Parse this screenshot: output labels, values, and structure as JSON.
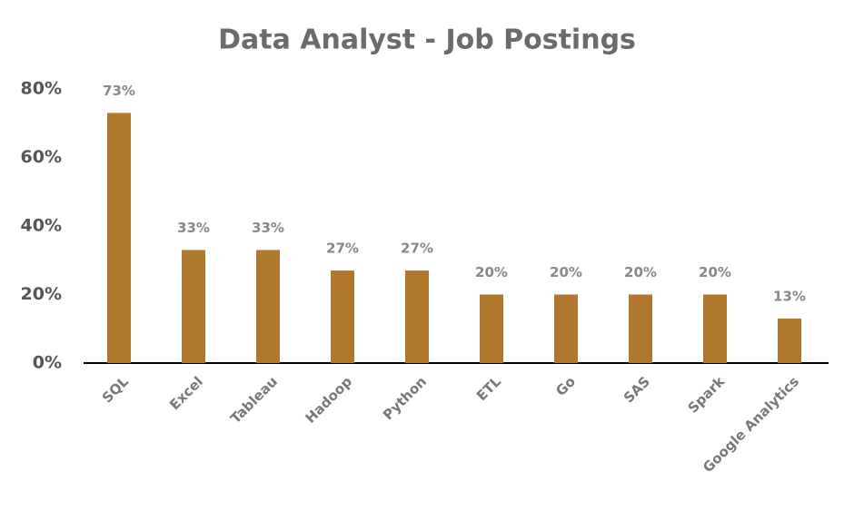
{
  "chart_data": {
    "type": "bar",
    "title": "Data Analyst - Job Postings",
    "categories": [
      "SQL",
      "Excel",
      "Tableau",
      "Hadoop",
      "Python",
      "ETL",
      "Go",
      "SAS",
      "Spark",
      "Google Analytics"
    ],
    "values": [
      73,
      33,
      33,
      27,
      27,
      20,
      20,
      20,
      20,
      13
    ],
    "value_labels": [
      "73%",
      "33%",
      "33%",
      "27%",
      "27%",
      "20%",
      "20%",
      "20%",
      "20%",
      "13%"
    ],
    "color": "#b0772f",
    "ylim": [
      0,
      80
    ],
    "yticks": [
      {
        "value": 0,
        "label": "0%"
      },
      {
        "value": 20,
        "label": "20%"
      },
      {
        "value": 40,
        "label": "40%"
      },
      {
        "value": 60,
        "label": "60%"
      },
      {
        "value": 80,
        "label": "80%"
      }
    ],
    "grid": false
  }
}
